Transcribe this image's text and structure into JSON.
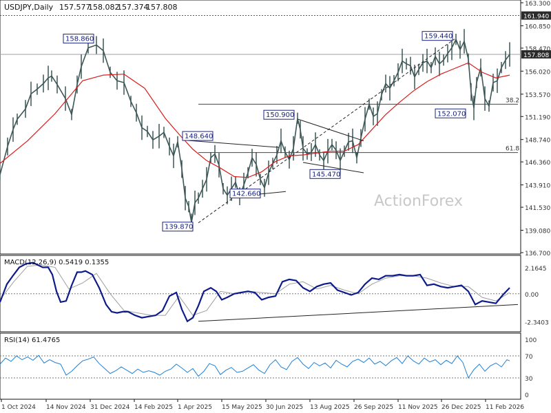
{
  "chart_data": [
    {
      "type": "line",
      "title": "USDJPY,Daily",
      "ohlc": {
        "open": "157.577",
        "high": "158.082",
        "low": "157.374",
        "close": "157.808"
      },
      "y_ticks": [
        "163.300",
        "160.850",
        "158.470",
        "156.020",
        "153.570",
        "151.190",
        "148.740",
        "146.360",
        "143.910",
        "141.530",
        "139.080",
        "136.700"
      ],
      "ylim": [
        136.7,
        163.3
      ],
      "x_ticks": [
        "1 Oct 2024",
        "14 Nov 2024",
        "31 Dec 2024",
        "14 Feb 2025",
        "1 Apr 2025",
        "15 May 2025",
        "30 Jun 2025",
        "13 Aug 2025",
        "26 Sep 2025",
        "11 Nov 2025",
        "26 Dec 2025",
        "11 Feb 2026"
      ],
      "price_tags": [
        {
          "label": "161.940",
          "value": 161.94
        },
        {
          "label": "157.808",
          "value": 157.808
        }
      ],
      "fib_levels": [
        {
          "label": "38.2",
          "value": 152.5
        },
        {
          "label": "61.8",
          "value": 147.35
        }
      ],
      "pivot_labels": [
        {
          "label": "158.860",
          "value": 158.86
        },
        {
          "label": "139.870",
          "value": 139.87
        },
        {
          "label": "148.640",
          "value": 148.64
        },
        {
          "label": "142.660",
          "value": 142.66
        },
        {
          "label": "150.900",
          "value": 150.9
        },
        {
          "label": "145.470",
          "value": 145.47
        },
        {
          "label": "159.440",
          "value": 159.44
        },
        {
          "label": "152.070",
          "value": 152.07
        }
      ],
      "series": [
        {
          "kind": "price",
          "x": [
            0,
            11,
            19,
            25,
            37,
            45,
            54,
            63,
            70,
            75,
            83,
            95,
            104,
            112,
            118,
            128,
            140,
            150,
            160,
            170,
            180,
            190,
            198,
            206,
            214,
            222,
            231,
            238,
            246,
            252,
            258,
            264,
            269,
            274,
            278,
            283,
            288,
            294,
            300,
            306,
            312,
            318,
            324,
            330,
            336,
            342,
            348,
            354,
            360,
            366,
            372,
            378,
            384,
            390,
            396,
            402,
            408,
            414,
            420,
            426,
            432,
            436,
            440,
            446,
            452,
            458,
            464,
            470,
            476,
            482,
            488,
            494,
            500,
            506,
            512,
            518,
            524,
            530,
            536,
            542,
            548,
            554,
            560,
            566,
            572,
            578,
            584,
            590,
            596,
            602,
            608,
            614,
            620,
            626,
            632,
            638,
            644,
            650,
            656,
            662,
            668,
            674,
            680,
            684,
            688,
            692,
            698,
            704,
            710,
            716,
            722,
            728,
            734,
            740
          ],
          "values": [
            145,
            148,
            149.8,
            150.9,
            152,
            153.6,
            154.1,
            154.7,
            155.3,
            155.5,
            154.6,
            153.1,
            151.4,
            154.6,
            156.5,
            158.5,
            158.8,
            158.2,
            155.9,
            155,
            154.8,
            152.8,
            151.6,
            150,
            149.6,
            148.7,
            149.1,
            149.5,
            148,
            147,
            148.5,
            145.6,
            142.5,
            141.6,
            139.9,
            142,
            142.5,
            143.5,
            144.5,
            146.8,
            147.2,
            146,
            143.5,
            142.8,
            143.5,
            144.2,
            142.7,
            143.9,
            145.2,
            146.8,
            146.1,
            144.5,
            143.6,
            145.2,
            146.2,
            147.1,
            148.6,
            147.4,
            146.6,
            147.8,
            151,
            149.8,
            147.8,
            147.2,
            147.4,
            148.2,
            147.1,
            146.5,
            147.5,
            148.2,
            147.6,
            146.5,
            147.5,
            148.5,
            148.6,
            146.8,
            148.9,
            150.9,
            152.5,
            151.2,
            151.5,
            153.5,
            154.7,
            154.2,
            155,
            155.9,
            157.1,
            156.8,
            156.6,
            155.4,
            156.2,
            156.9,
            157.1,
            156.4,
            157.6,
            156.8,
            157.2,
            157.9,
            158.5,
            159.4,
            158.3,
            159.2,
            157.3,
            153.8,
            152.1,
            154.8,
            156.4,
            153.1,
            152.3,
            154.8,
            155,
            156.4,
            157.2,
            157.8
          ]
        },
        {
          "kind": "moving_average",
          "color": "#d81b1b",
          "x": [
            0,
            40,
            80,
            120,
            150,
            180,
            210,
            240,
            260,
            280,
            300,
            320,
            340,
            360,
            380,
            400,
            420,
            440,
            460,
            480,
            500,
            520,
            540,
            560,
            580,
            600,
            620,
            640,
            660,
            680,
            700,
            720,
            740
          ],
          "values": [
            146.2,
            148.6,
            151.5,
            155,
            155.6,
            155.7,
            154.2,
            151,
            149.3,
            147.7,
            146.5,
            145.7,
            144.8,
            144.7,
            145.3,
            146.4,
            147,
            147.1,
            147.3,
            147.5,
            147.5,
            148.2,
            149.8,
            151.4,
            152.7,
            153.9,
            154.9,
            155.7,
            156.3,
            156.9,
            155.9,
            155.3,
            155.6
          ]
        }
      ]
    },
    {
      "type": "line",
      "title": "MACD(12,26,9) 0.5419 0.1355",
      "y_ticks": [
        "2.1645",
        "0.00",
        "-2.3403"
      ],
      "ylim": [
        -3,
        2.8
      ],
      "series": [
        {
          "kind": "macd",
          "x": [
            0,
            10,
            20,
            28,
            38,
            48,
            55,
            62,
            70,
            76,
            82,
            88,
            96,
            104,
            112,
            118,
            124,
            134,
            144,
            154,
            162,
            170,
            178,
            186,
            196,
            206,
            216,
            226,
            236,
            246,
            256,
            264,
            272,
            280,
            288,
            296,
            306,
            314,
            322,
            330,
            340,
            350,
            360,
            370,
            380,
            390,
            400,
            410,
            420,
            430,
            440,
            450,
            460,
            470,
            480,
            490,
            500,
            510,
            520,
            530,
            540,
            550,
            560,
            570,
            580,
            590,
            600,
            610,
            620,
            630,
            640,
            650,
            660,
            670,
            680,
            690,
            700,
            710,
            720,
            730,
            740
          ],
          "values": [
            -0.7,
            0.8,
            1.6,
            2.2,
            2.5,
            2.6,
            2.4,
            2.2,
            2.2,
            1.6,
            0.2,
            -0.7,
            -0.6,
            0.7,
            1.8,
            1.8,
            1.9,
            1.6,
            0.5,
            -0.9,
            -1.5,
            -1.6,
            -1.5,
            -1.5,
            -1.8,
            -2.0,
            -1.9,
            -1.8,
            -1.4,
            -0.2,
            0.1,
            -1.3,
            -2.3,
            -2.0,
            -1.0,
            0.2,
            0.5,
            0.2,
            -0.5,
            -0.3,
            0.0,
            0.1,
            0.2,
            0.1,
            -0.5,
            -0.3,
            -0.2,
            1.0,
            1.2,
            1.1,
            0.5,
            0.2,
            0.6,
            0.8,
            0.9,
            0.3,
            0.1,
            -0.1,
            0.1,
            0.8,
            1.3,
            1.2,
            1.5,
            1.5,
            1.6,
            1.5,
            1.5,
            1.6,
            0.7,
            0.8,
            0.6,
            0.5,
            0.6,
            0.7,
            0.2,
            -0.9,
            -0.6,
            -0.7,
            -0.8,
            -0.1,
            0.5
          ]
        },
        {
          "kind": "signal",
          "x": [
            0,
            20,
            40,
            60,
            80,
            100,
            120,
            140,
            160,
            180,
            200,
            220,
            240,
            260,
            280,
            300,
            320,
            340,
            360,
            380,
            400,
            420,
            440,
            460,
            480,
            500,
            520,
            540,
            560,
            580,
            600,
            620,
            640,
            660,
            680,
            700,
            720,
            740
          ],
          "values": [
            -0.5,
            1.0,
            2.3,
            2.4,
            2.2,
            0.4,
            0.9,
            1.7,
            0.0,
            -1.4,
            -1.6,
            -1.8,
            -1.8,
            -0.2,
            -1.8,
            -1.4,
            0.2,
            0.0,
            0.2,
            0.1,
            0.0,
            0.8,
            1.0,
            0.4,
            0.7,
            0.3,
            0.0,
            0.8,
            1.3,
            1.5,
            1.5,
            1.3,
            0.9,
            0.6,
            0.6,
            -0.3,
            -0.6,
            0.1
          ]
        }
      ]
    },
    {
      "type": "line",
      "title": "RSI(14) 61.4765",
      "y_ticks": [
        "100",
        "70",
        "30",
        "0"
      ],
      "ylim": [
        0,
        100
      ],
      "series": [
        {
          "kind": "rsi",
          "color": "#1e7fd6",
          "x": [
            0,
            8,
            16,
            24,
            32,
            40,
            48,
            56,
            64,
            72,
            80,
            88,
            96,
            104,
            112,
            120,
            128,
            136,
            144,
            152,
            160,
            168,
            176,
            184,
            192,
            200,
            208,
            216,
            224,
            232,
            240,
            248,
            256,
            264,
            272,
            280,
            288,
            296,
            304,
            312,
            320,
            328,
            336,
            344,
            352,
            360,
            368,
            376,
            384,
            392,
            400,
            408,
            416,
            424,
            432,
            440,
            448,
            456,
            464,
            472,
            480,
            488,
            496,
            504,
            512,
            520,
            528,
            536,
            544,
            552,
            560,
            568,
            576,
            584,
            592,
            600,
            608,
            616,
            624,
            632,
            640,
            648,
            656,
            664,
            672,
            680,
            688,
            696,
            704,
            712,
            720,
            728,
            736,
            740
          ],
          "values": [
            55,
            66,
            60,
            70,
            63,
            68,
            62,
            71,
            57,
            63,
            58,
            55,
            35,
            42,
            52,
            61,
            64,
            68,
            56,
            47,
            38,
            43,
            50,
            44,
            38,
            46,
            40,
            43,
            40,
            35,
            42,
            46,
            55,
            48,
            40,
            47,
            33,
            42,
            56,
            52,
            36,
            44,
            49,
            40,
            42,
            48,
            54,
            44,
            38,
            54,
            63,
            50,
            45,
            60,
            67,
            55,
            47,
            58,
            52,
            57,
            48,
            62,
            55,
            50,
            60,
            64,
            58,
            66,
            55,
            60,
            52,
            61,
            67,
            56,
            70,
            61,
            55,
            66,
            59,
            63,
            54,
            62,
            56,
            70,
            58,
            30,
            45,
            55,
            42,
            52,
            57,
            50,
            63,
            61
          ]
        }
      ]
    }
  ],
  "watermark": "ActionForex",
  "colors": {
    "grid": "#9aa0a6",
    "price_tag_bg": "#2b2b2b",
    "box_border": "#1a237e",
    "text": "#333333"
  }
}
